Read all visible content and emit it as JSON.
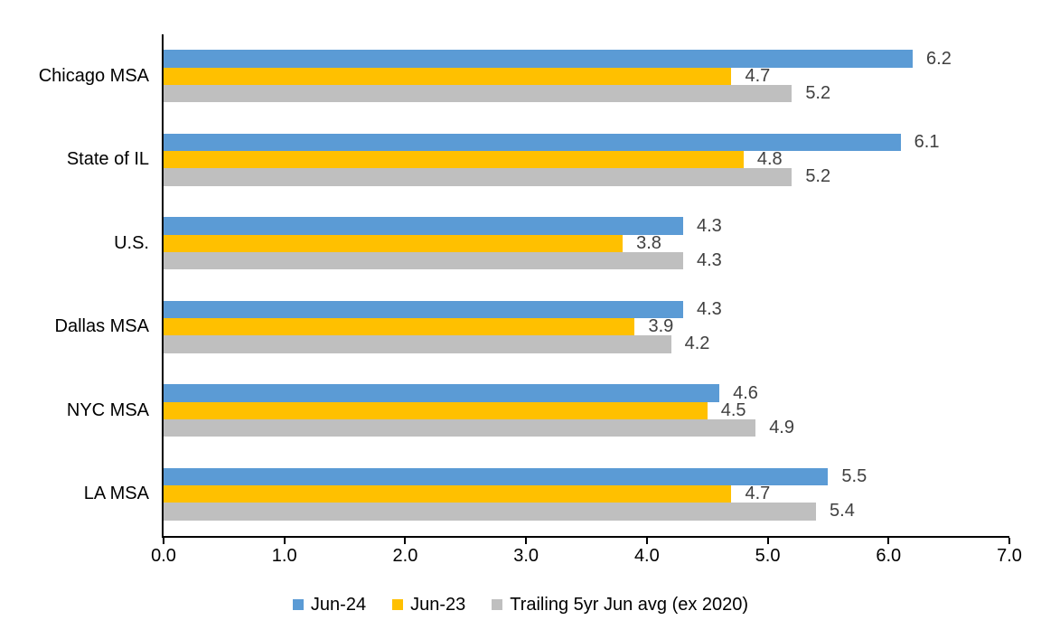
{
  "chart_data": {
    "type": "bar",
    "orientation": "horizontal",
    "title": "",
    "categories": [
      "Chicago MSA",
      "State of IL",
      "U.S.",
      "Dallas MSA",
      "NYC MSA",
      "LA MSA"
    ],
    "series": [
      {
        "name": "Jun-24",
        "color": "#5B9BD5",
        "values": [
          6.2,
          6.1,
          4.3,
          4.3,
          4.6,
          5.5
        ]
      },
      {
        "name": "Jun-23",
        "color": "#FFC000",
        "values": [
          4.7,
          4.8,
          3.8,
          3.9,
          4.5,
          4.7
        ]
      },
      {
        "name": "Trailing 5yr Jun avg (ex 2020)",
        "color": "#BFBFBF",
        "values": [
          5.2,
          5.2,
          4.3,
          4.2,
          4.9,
          5.4
        ]
      }
    ],
    "xlabel": "",
    "ylabel": "",
    "xlim": [
      0,
      7
    ],
    "x_ticks": [
      "0.0",
      "1.0",
      "2.0",
      "3.0",
      "4.0",
      "5.0",
      "6.0",
      "7.0"
    ],
    "grid": false,
    "data_labels": true,
    "legend_position": "bottom"
  },
  "style": {
    "axis_color": "#000000",
    "data_label_color": "#404040",
    "background": "#ffffff"
  }
}
